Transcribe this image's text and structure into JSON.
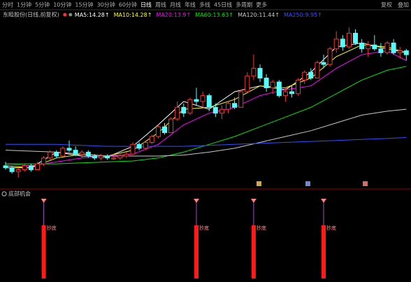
{
  "toolbar": {
    "items": [
      "分时",
      "1分钟",
      "5分钟",
      "10分钟",
      "15分钟",
      "30分钟",
      "60分钟",
      "日线",
      "周线",
      "月线",
      "年线",
      "多线",
      "45日线",
      "多周期",
      "更多"
    ],
    "right": [
      "复权",
      "叠加"
    ]
  },
  "chart_data": [
    {
      "type": "candlestick",
      "title": "东睦股份(日线,前复权)",
      "up_color": "#ff3232",
      "down_color": "#54fcfc",
      "ylim": [
        7.6,
        16.0
      ],
      "candles": [
        [
          8.5,
          8.7,
          8.3,
          8.4
        ],
        [
          8.4,
          8.5,
          8.1,
          8.2
        ],
        [
          8.2,
          8.4,
          7.9,
          8.3
        ],
        [
          8.3,
          8.6,
          8.2,
          8.5
        ],
        [
          8.5,
          8.6,
          8.2,
          8.3
        ],
        [
          8.3,
          8.7,
          8.3,
          8.6
        ],
        [
          8.6,
          9.0,
          8.5,
          8.9
        ],
        [
          8.9,
          9.3,
          8.8,
          9.2
        ],
        [
          9.2,
          9.3,
          8.9,
          9.0
        ],
        [
          9.0,
          9.5,
          9.0,
          9.4
        ],
        [
          9.4,
          9.8,
          9.2,
          9.3
        ],
        [
          9.3,
          9.5,
          9.0,
          9.1
        ],
        [
          9.1,
          9.3,
          8.9,
          9.2
        ],
        [
          9.2,
          9.3,
          8.9,
          9.0
        ],
        [
          9.0,
          9.1,
          8.8,
          8.9
        ],
        [
          8.9,
          9.1,
          8.8,
          9.0
        ],
        [
          9.0,
          9.1,
          8.8,
          8.9
        ],
        [
          8.85,
          9.0,
          8.8,
          8.9
        ],
        [
          8.9,
          9.1,
          8.8,
          9.0
        ],
        [
          9.0,
          9.2,
          8.9,
          9.1
        ],
        [
          9.1,
          9.7,
          9.1,
          9.6
        ],
        [
          9.6,
          9.7,
          9.3,
          9.4
        ],
        [
          9.4,
          9.8,
          9.3,
          9.7
        ],
        [
          9.7,
          10.1,
          9.6,
          10.0
        ],
        [
          10.0,
          10.6,
          9.9,
          10.5
        ],
        [
          10.5,
          10.7,
          10.1,
          10.2
        ],
        [
          10.2,
          11.0,
          10.2,
          10.9
        ],
        [
          10.9,
          11.8,
          10.8,
          11.5
        ],
        [
          11.5,
          11.7,
          11.0,
          11.2
        ],
        [
          11.2,
          12.0,
          11.1,
          11.9
        ],
        [
          11.9,
          12.5,
          11.6,
          11.8
        ],
        [
          11.8,
          12.3,
          11.5,
          12.1
        ],
        [
          12.1,
          12.2,
          11.3,
          11.5
        ],
        [
          11.5,
          11.7,
          11.0,
          11.2
        ],
        [
          11.2,
          11.6,
          10.9,
          11.4
        ],
        [
          11.4,
          11.8,
          11.2,
          11.7
        ],
        [
          11.7,
          12.0,
          11.4,
          11.5
        ],
        [
          11.5,
          12.4,
          11.5,
          12.3
        ],
        [
          12.3,
          13.3,
          12.2,
          13.1
        ],
        [
          13.1,
          14.2,
          12.9,
          13.5
        ],
        [
          13.5,
          13.7,
          12.8,
          13.0
        ],
        [
          13.0,
          13.2,
          12.3,
          12.5
        ],
        [
          12.5,
          12.9,
          12.2,
          12.8
        ],
        [
          12.8,
          12.9,
          12.0,
          12.1
        ],
        [
          12.1,
          12.5,
          11.8,
          12.3
        ],
        [
          12.3,
          12.6,
          12.0,
          12.2
        ],
        [
          12.2,
          13.0,
          12.1,
          12.9
        ],
        [
          12.9,
          13.4,
          12.7,
          13.3
        ],
        [
          13.3,
          13.5,
          12.9,
          13.0
        ],
        [
          13.0,
          13.9,
          13.0,
          13.8
        ],
        [
          13.8,
          14.2,
          13.5,
          13.7
        ],
        [
          13.7,
          14.6,
          13.6,
          14.5
        ],
        [
          14.5,
          15.4,
          14.3,
          15.0
        ],
        [
          15.0,
          15.2,
          14.4,
          14.6
        ],
        [
          14.6,
          15.6,
          14.5,
          15.3
        ],
        [
          15.3,
          15.5,
          14.7,
          14.8
        ],
        [
          14.8,
          15.0,
          14.3,
          14.5
        ],
        [
          14.5,
          14.9,
          14.1,
          14.7
        ],
        [
          14.7,
          15.2,
          14.4,
          14.5
        ],
        [
          14.5,
          14.8,
          14.1,
          14.3
        ],
        [
          14.3,
          14.9,
          14.2,
          14.8
        ],
        [
          14.8,
          15.0,
          14.2,
          14.3
        ],
        [
          14.3,
          14.6,
          14.0,
          14.4
        ],
        [
          14.4,
          14.5,
          13.9,
          14.2
        ]
      ],
      "ma_x": [
        0,
        4,
        8,
        12,
        16,
        20,
        24,
        28,
        32,
        36,
        40,
        44,
        48,
        52,
        56,
        60,
        63
      ],
      "ma_series": [
        {
          "name": "MA5:",
          "last": 14.28,
          "trend": "↑",
          "color": "#ffffff",
          "values": [
            8.4,
            8.4,
            9.2,
            9.0,
            8.95,
            9.5,
            10.6,
            11.8,
            11.4,
            12.3,
            12.6,
            12.4,
            13.3,
            14.6,
            14.8,
            14.5,
            14.3
          ]
        },
        {
          "name": "MA10:",
          "last": 14.28,
          "trend": "↑",
          "color": "#ffff00",
          "values": [
            8.5,
            8.4,
            8.9,
            9.1,
            9.0,
            9.3,
            10.2,
            11.4,
            11.5,
            11.9,
            12.6,
            12.5,
            13.0,
            14.1,
            14.7,
            14.6,
            14.3
          ]
        },
        {
          "name": "MA20:",
          "last": 13.9,
          "trend": "↑",
          "color": "#ff00ff",
          "values": [
            8.6,
            8.5,
            8.7,
            8.9,
            9.0,
            9.1,
            9.6,
            10.6,
            11.2,
            11.5,
            12.1,
            12.4,
            12.6,
            13.5,
            14.2,
            14.4,
            13.9
          ]
        },
        {
          "name": "MA60:",
          "last": 13.63,
          "trend": "↑",
          "color": "#00e600",
          "values": [
            8.6,
            8.6,
            8.6,
            8.65,
            8.7,
            8.75,
            8.9,
            9.2,
            9.6,
            10.0,
            10.5,
            11.0,
            11.5,
            12.2,
            12.9,
            13.4,
            13.6
          ]
        },
        {
          "name": "MA120:",
          "last": 11.44,
          "trend": "↑",
          "color": "#c8c8c8",
          "values": [
            9.3,
            9.25,
            9.2,
            9.1,
            9.0,
            9.0,
            9.0,
            9.05,
            9.2,
            9.4,
            9.7,
            10.0,
            10.3,
            10.7,
            11.1,
            11.3,
            11.4
          ]
        },
        {
          "name": "MA250:",
          "last": 9.95,
          "trend": "↑",
          "color": "#3050ff",
          "values": [
            9.6,
            9.6,
            9.6,
            9.55,
            9.5,
            9.5,
            9.5,
            9.5,
            9.55,
            9.6,
            9.65,
            9.7,
            9.75,
            9.8,
            9.85,
            9.9,
            9.95
          ]
        }
      ]
    },
    {
      "type": "bar",
      "title": "底部机会",
      "color": "#ff1a1a",
      "label": "抄底",
      "ylim": [
        0,
        1.5
      ],
      "x": [
        6,
        30,
        39,
        50
      ],
      "values": [
        1,
        1,
        1,
        1
      ]
    }
  ]
}
